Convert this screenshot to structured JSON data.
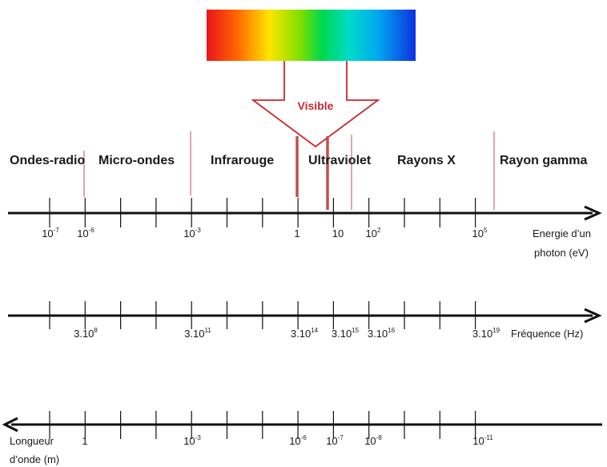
{
  "visible_label": "Visible",
  "bands": [
    "Ondes-radio",
    "Micro-ondes",
    "Infrarouge",
    "Ultraviolet",
    "Rayons X",
    "Rayon gamma"
  ],
  "energy_axis": {
    "caption_line1": "Energie d’un",
    "caption_line2": "photon (eV)",
    "labels": [
      {
        "base": "10",
        "exp": "-7"
      },
      {
        "base": "10",
        "exp": "-6"
      },
      {
        "base": "10",
        "exp": "-3"
      },
      {
        "base": "1",
        "exp": ""
      },
      {
        "base": "10",
        "exp": ""
      },
      {
        "base": "10",
        "exp": "2"
      },
      {
        "base": "10",
        "exp": "5"
      }
    ]
  },
  "frequency_axis": {
    "caption": "Fréquence (Hz)",
    "labels": [
      {
        "base": "3.10",
        "exp": "8"
      },
      {
        "base": "3.10",
        "exp": "11"
      },
      {
        "base": "3.10",
        "exp": "14"
      },
      {
        "base": "3.10",
        "exp": "15"
      },
      {
        "base": "3.10",
        "exp": "16"
      },
      {
        "base": "3.10",
        "exp": "19"
      }
    ]
  },
  "wavelength_axis": {
    "caption_line1": "Longueur",
    "caption_line2": "d’onde (m)",
    "labels": [
      {
        "base": "1",
        "exp": ""
      },
      {
        "base": "10",
        "exp": "-3"
      },
      {
        "base": "10",
        "exp": "-6"
      },
      {
        "base": "10",
        "exp": "-7"
      },
      {
        "base": "10",
        "exp": "-8"
      },
      {
        "base": "10",
        "exp": "-11"
      }
    ]
  },
  "colors": {
    "axis": "#111111",
    "divider": "#c0504d",
    "arrow_outline": "#c8282d",
    "visible_text": "#c8282d"
  }
}
